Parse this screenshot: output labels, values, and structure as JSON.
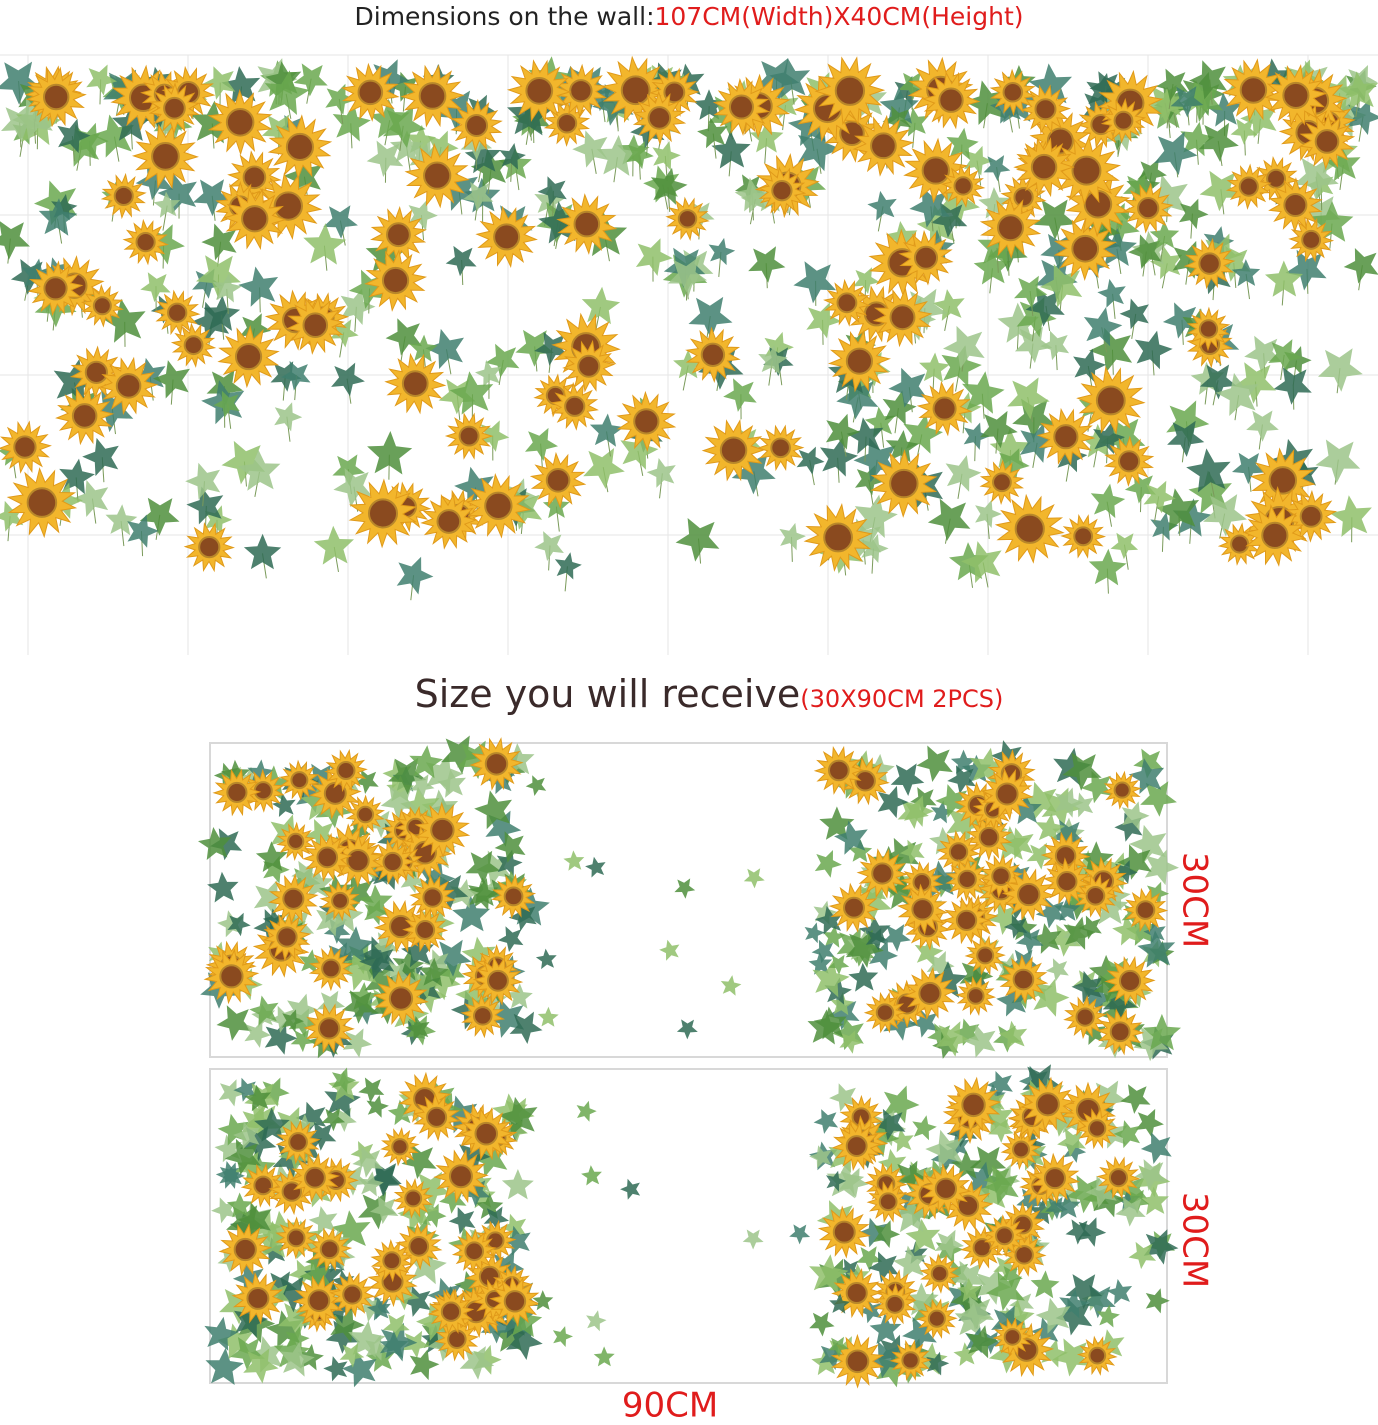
{
  "header": {
    "label": "Dimensions on the wall:",
    "size": "107CM(Width)X40CM(Height)"
  },
  "subheader": {
    "label": "Size you will receive",
    "size": "(30X90CM  2PCS)"
  },
  "panels": [
    {
      "height": "30CM"
    },
    {
      "height": "30CM"
    }
  ],
  "width": "90CM"
}
